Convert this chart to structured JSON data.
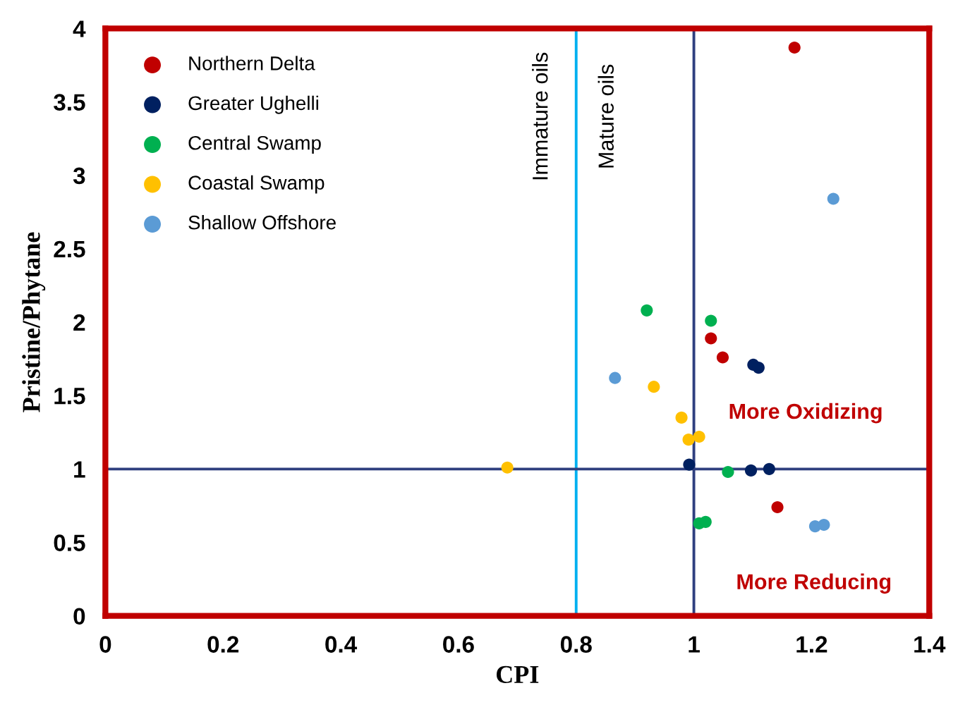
{
  "chart_data": {
    "type": "scatter",
    "xlabel": "CPI",
    "ylabel": "Pristine/Phytane",
    "xlim": [
      0,
      1.4
    ],
    "xticks": [
      0,
      0.2,
      0.4,
      0.6,
      0.8,
      1,
      1.2,
      1.4
    ],
    "ylim": [
      0,
      4
    ],
    "yticks": [
      0,
      0.5,
      1,
      1.5,
      2,
      2.5,
      3,
      3.5,
      4
    ],
    "grid": false,
    "legend": "top left",
    "marker": "circle",
    "series": [
      {
        "name": "Northern Delta",
        "color": "#c00000",
        "x": [
          1.029,
          1.049,
          1.142,
          1.171
        ],
        "values": [
          1.89,
          1.76,
          0.74,
          3.87
        ]
      },
      {
        "name": "Greater Ughelli",
        "color": "#002060",
        "x": [
          1.101,
          1.11,
          0.992,
          1.097,
          1.128
        ],
        "values": [
          1.71,
          1.69,
          1.03,
          0.99,
          1.0
        ]
      },
      {
        "name": "Central Swamp",
        "color": "#00b050",
        "x": [
          0.92,
          1.029,
          1.058,
          1.009,
          1.02
        ],
        "values": [
          2.08,
          2.01,
          0.98,
          0.63,
          0.64
        ]
      },
      {
        "name": "Coastal Swamp",
        "color": "#ffc000",
        "x": [
          0.683,
          0.932,
          0.979,
          0.991,
          1.009
        ],
        "values": [
          1.01,
          1.56,
          1.35,
          1.2,
          1.22
        ]
      },
      {
        "name": "Shallow Offshore",
        "color": "#5b9bd5",
        "x": [
          1.237,
          0.866,
          1.206,
          1.221
        ],
        "values": [
          2.84,
          1.62,
          0.61,
          0.62
        ]
      }
    ],
    "ref_lines": [
      {
        "axis": "x",
        "value": 0.8,
        "color": "#00b0f0"
      },
      {
        "axis": "x",
        "value": 1,
        "color": "#2f3f7f"
      },
      {
        "axis": "y",
        "value": 1,
        "color": "#2f3f7f"
      }
    ],
    "annotations": [
      "Immature oils",
      "Mature oils",
      "More Oxidizing",
      "More Reducing"
    ]
  }
}
